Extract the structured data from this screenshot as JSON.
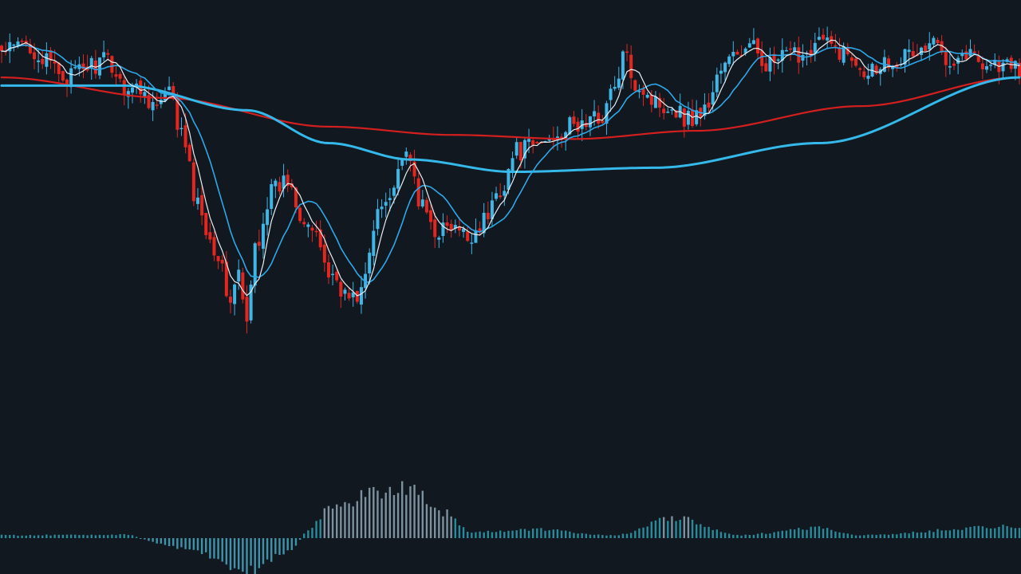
{
  "chart_data": [
    {
      "type": "candlestick",
      "title": "",
      "xlabel": "",
      "ylabel": "",
      "grid": false,
      "legend": "none",
      "ylim": [
        0,
        100
      ],
      "colors": {
        "background": "#111820",
        "up": "#3fb6e6",
        "down": "#e3261f",
        "ma_fast": "#e9eef2",
        "ma_mid": "#2ea8e8",
        "ma_slow_red": "#d41f1f",
        "ma_slow_blue": "#35b8ea"
      },
      "anchors": [
        [
          0,
          92
        ],
        [
          6,
          94
        ],
        [
          12,
          89
        ],
        [
          16,
          86
        ],
        [
          22,
          89
        ],
        [
          26,
          90
        ],
        [
          30,
          84
        ],
        [
          34,
          83
        ],
        [
          38,
          79
        ],
        [
          41,
          82
        ],
        [
          44,
          72
        ],
        [
          48,
          55
        ],
        [
          52,
          45
        ],
        [
          56,
          32
        ],
        [
          58,
          38
        ],
        [
          60,
          25
        ],
        [
          62,
          45
        ],
        [
          66,
          58
        ],
        [
          70,
          61
        ],
        [
          74,
          52
        ],
        [
          78,
          45
        ],
        [
          80,
          38
        ],
        [
          82,
          37
        ],
        [
          84,
          33
        ],
        [
          86,
          32
        ],
        [
          88,
          34
        ],
        [
          90,
          42
        ],
        [
          92,
          54
        ],
        [
          96,
          60
        ],
        [
          98,
          67
        ],
        [
          100,
          64
        ],
        [
          103,
          54
        ],
        [
          106,
          49
        ],
        [
          110,
          49
        ],
        [
          114,
          47
        ],
        [
          118,
          51
        ],
        [
          122,
          59
        ],
        [
          126,
          68
        ],
        [
          130,
          69
        ],
        [
          134,
          71
        ],
        [
          136,
          73
        ],
        [
          140,
          74
        ],
        [
          146,
          76
        ],
        [
          150,
          83
        ],
        [
          152,
          91
        ],
        [
          156,
          84
        ],
        [
          160,
          80
        ],
        [
          164,
          79
        ],
        [
          168,
          76
        ],
        [
          172,
          78
        ],
        [
          176,
          88
        ],
        [
          180,
          92
        ],
        [
          184,
          93
        ],
        [
          188,
          89
        ],
        [
          192,
          91
        ],
        [
          196,
          92
        ],
        [
          200,
          95
        ],
        [
          204,
          93
        ],
        [
          208,
          91
        ],
        [
          212,
          88
        ],
        [
          216,
          90
        ],
        [
          220,
          91
        ],
        [
          224,
          92
        ],
        [
          228,
          94
        ],
        [
          232,
          91
        ],
        [
          236,
          92
        ],
        [
          240,
          90
        ],
        [
          244,
          89
        ],
        [
          249,
          88
        ]
      ],
      "ma_periods": [
        5,
        12
      ],
      "ma_slow_points": {
        "red": [
          [
            0,
            86
          ],
          [
            40,
            81
          ],
          [
            80,
            74
          ],
          [
            110,
            72
          ],
          [
            140,
            71
          ],
          [
            170,
            73
          ],
          [
            210,
            79
          ],
          [
            249,
            86
          ]
        ],
        "blue": [
          [
            0,
            84
          ],
          [
            30,
            84
          ],
          [
            60,
            78
          ],
          [
            80,
            70
          ],
          [
            100,
            66
          ],
          [
            125,
            63
          ],
          [
            160,
            64
          ],
          [
            200,
            70
          ],
          [
            249,
            86
          ]
        ]
      },
      "histogram_weights": [
        [
          0,
          0.05
        ],
        [
          30,
          0.06
        ],
        [
          45,
          -0.3
        ],
        [
          60,
          -0.95
        ],
        [
          70,
          -0.4
        ],
        [
          75,
          0.15
        ],
        [
          80,
          0.5
        ],
        [
          92,
          0.8
        ],
        [
          100,
          0.9
        ],
        [
          108,
          0.45
        ],
        [
          115,
          0.1
        ],
        [
          130,
          0.15
        ],
        [
          150,
          0.05
        ],
        [
          165,
          0.35
        ],
        [
          180,
          0.05
        ],
        [
          200,
          0.18
        ],
        [
          210,
          0.05
        ],
        [
          245,
          0.2
        ],
        [
          249,
          0.18
        ]
      ]
    }
  ]
}
